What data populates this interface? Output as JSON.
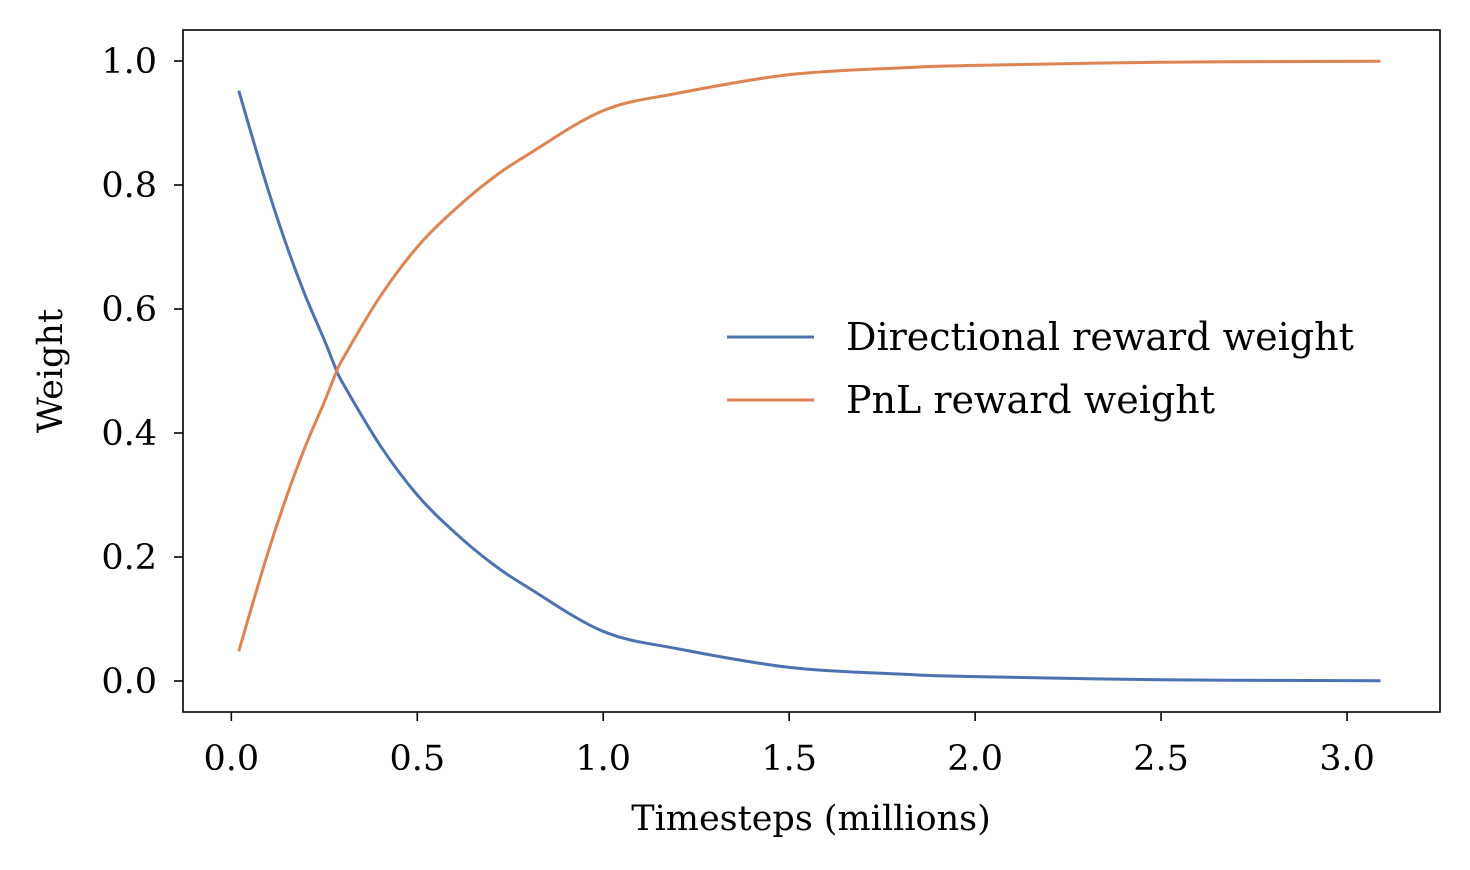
{
  "chart_data": {
    "type": "line",
    "title": "",
    "xlabel": "Timesteps (millions)",
    "ylabel": "Weight",
    "xlim": [
      -0.13,
      3.25
    ],
    "ylim": [
      -0.05,
      1.05
    ],
    "x_ticks": [
      "0.0",
      "0.5",
      "1.0",
      "1.5",
      "2.0",
      "2.5",
      "3.0"
    ],
    "y_ticks": [
      "0.0",
      "0.2",
      "0.4",
      "0.6",
      "0.8",
      "1.0"
    ],
    "grid": false,
    "legend": "center-right",
    "x": [
      0.02,
      0.05,
      0.1,
      0.15,
      0.2,
      0.25,
      0.28,
      0.3,
      0.4,
      0.5,
      0.6,
      0.7,
      0.8,
      1.0,
      1.2,
      1.5,
      1.8,
      2.0,
      2.5,
      3.0,
      3.09
    ],
    "series": [
      {
        "name": "Directional reward weight",
        "color": "#4c72b0",
        "values": [
          0.952,
          0.89,
          0.79,
          0.7,
          0.62,
          0.55,
          0.505,
          0.48,
          0.38,
          0.3,
          0.24,
          0.19,
          0.15,
          0.08,
          0.052,
          0.022,
          0.011,
          0.007,
          0.002,
          0.0006,
          0.0005
        ]
      },
      {
        "name": "PnL reward weight",
        "color": "#dd8452",
        "values": [
          0.048,
          0.11,
          0.21,
          0.3,
          0.38,
          0.45,
          0.495,
          0.52,
          0.62,
          0.7,
          0.76,
          0.81,
          0.85,
          0.92,
          0.948,
          0.978,
          0.989,
          0.993,
          0.998,
          0.9994,
          0.9995
        ]
      }
    ]
  }
}
